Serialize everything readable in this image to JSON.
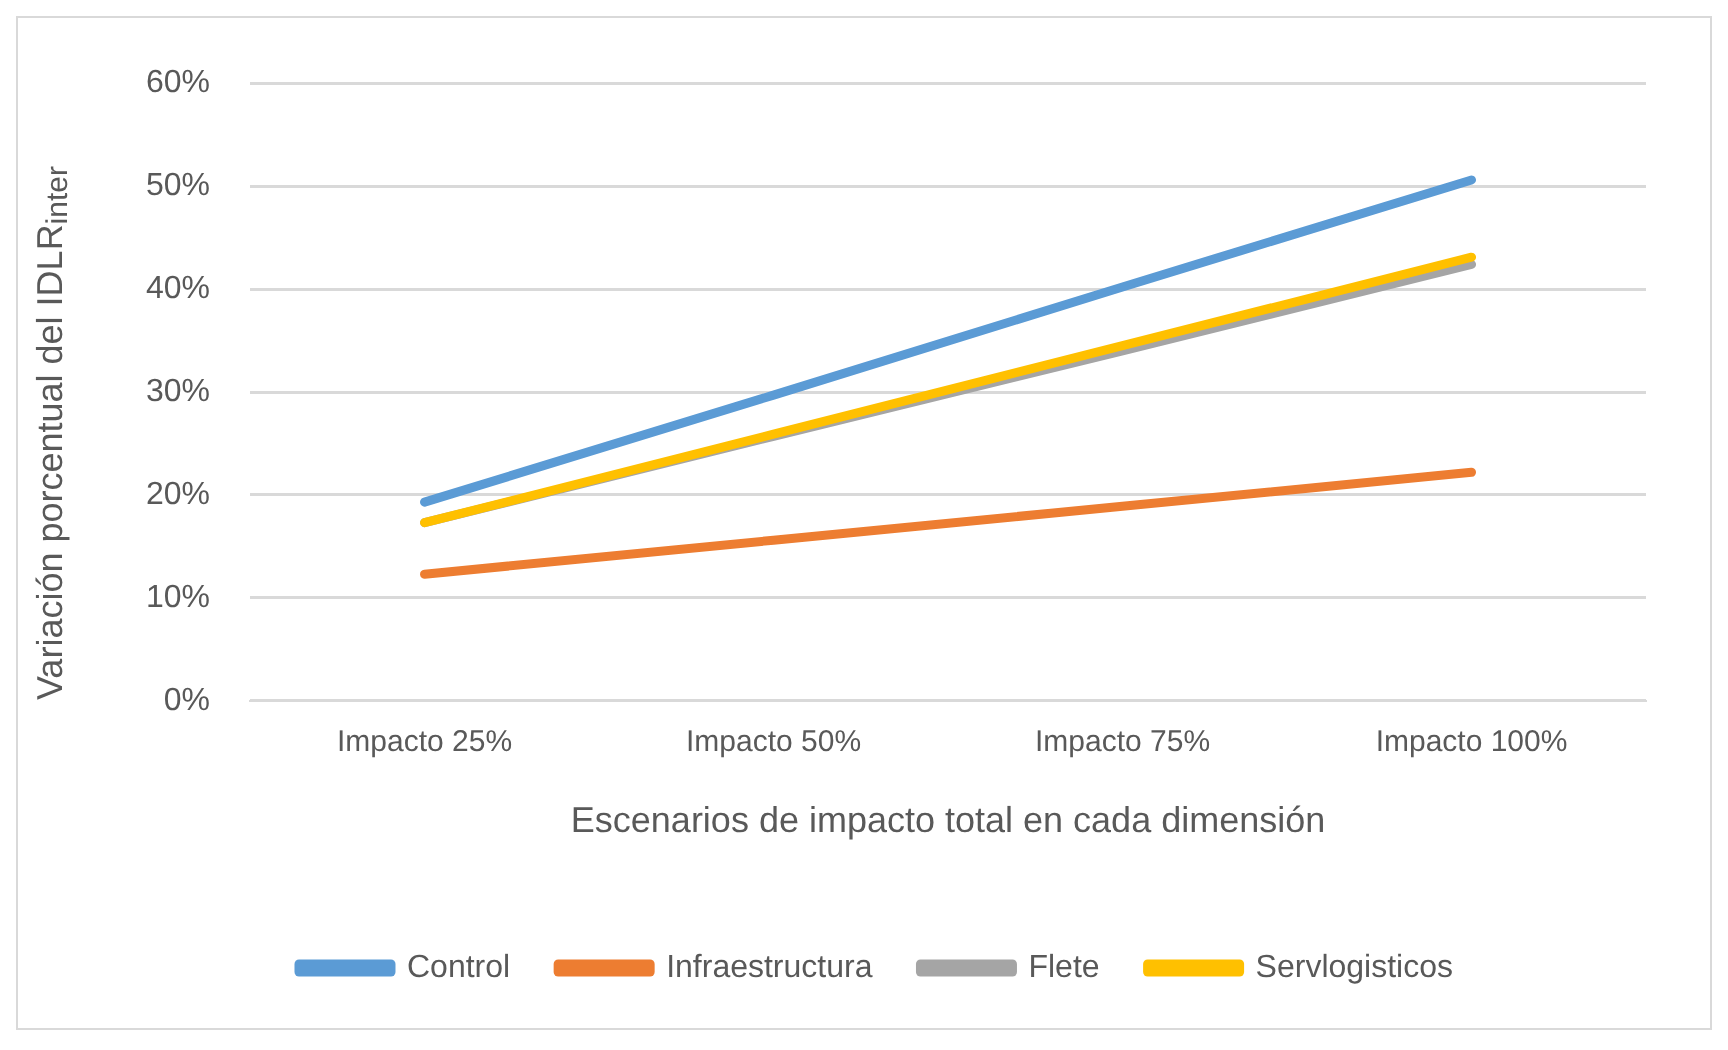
{
  "chart_data": {
    "type": "line",
    "xlabel": "Escenarios de impacto total en cada dimensión",
    "ylabel": "Variación porcentual del IDLR$_{inter}$",
    "categories": [
      "Impacto 25%",
      "Impacto 50%",
      "Impacto 75%",
      "Impacto 100%"
    ],
    "series": [
      {
        "name": "Control",
        "color": "#5b9bd5",
        "values": [
          19.3,
          29.7,
          40.2,
          50.6
        ]
      },
      {
        "name": "Infraestructura",
        "color": "#ed7d31",
        "values": [
          12.3,
          15.6,
          18.9,
          22.2
        ]
      },
      {
        "name": "Flete",
        "color": "#a5a5a5",
        "values": [
          17.3,
          25.7,
          34.0,
          42.4
        ]
      },
      {
        "name": "Servlogisticos",
        "color": "#ffc000",
        "values": [
          17.3,
          25.9,
          34.5,
          43.1
        ]
      }
    ],
    "ylim": [
      0,
      60
    ],
    "yticks": [
      {
        "value": 0,
        "label": "0%"
      },
      {
        "value": 10,
        "label": "10%"
      },
      {
        "value": 20,
        "label": "20%"
      },
      {
        "value": 30,
        "label": "30%"
      },
      {
        "value": 40,
        "label": "40%"
      },
      {
        "value": 50,
        "label": "50%"
      },
      {
        "value": 60,
        "label": "60%"
      }
    ],
    "grid": "y",
    "legend": "bottom",
    "marker": "none",
    "line_style": "solid"
  }
}
